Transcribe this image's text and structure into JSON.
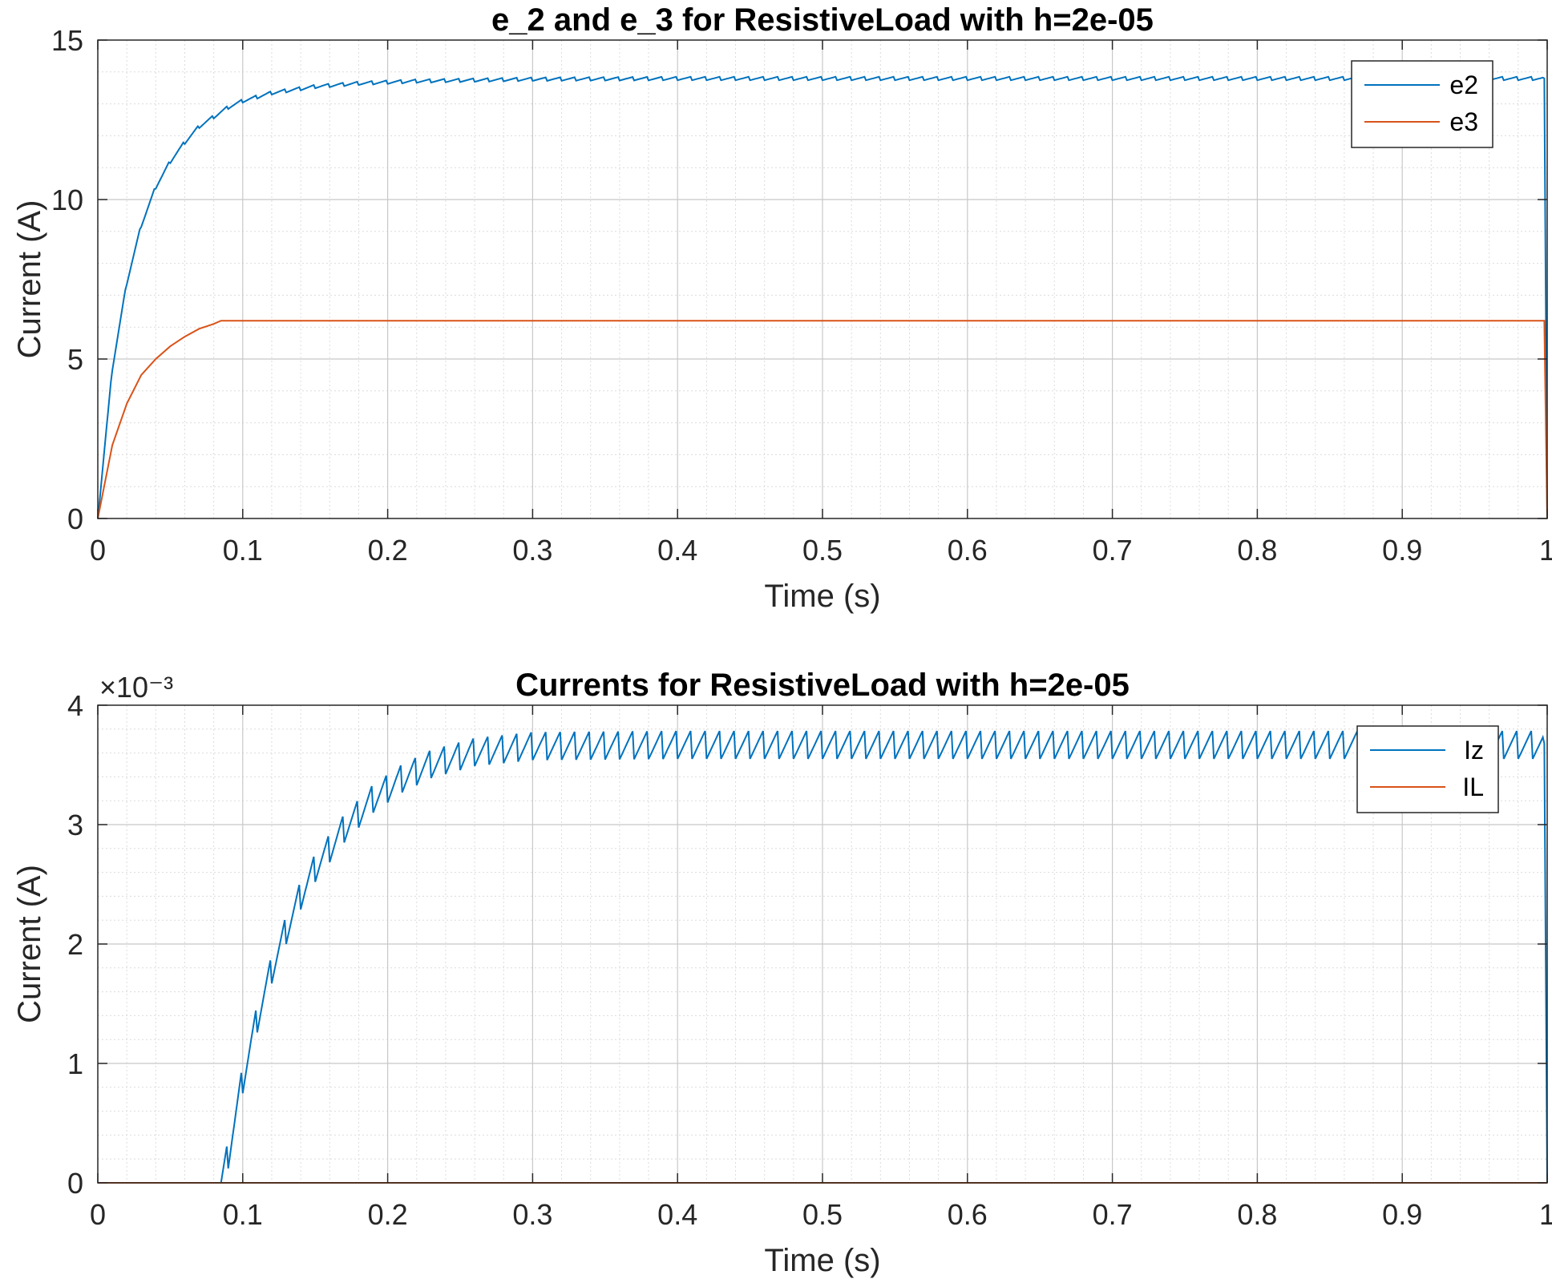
{
  "chart_data": [
    {
      "type": "line",
      "title": "e_2 and e_3 for ResistiveLoad with h=2e-05",
      "xlabel": "Time (s)",
      "ylabel": "Current (A)",
      "xlim": [
        0,
        1
      ],
      "ylim": [
        0,
        15
      ],
      "xticks": [
        "0",
        "0.1",
        "0.2",
        "0.3",
        "0.4",
        "0.5",
        "0.6",
        "0.7",
        "0.8",
        "0.9",
        "1"
      ],
      "yticks": [
        "0",
        "5",
        "10",
        "15"
      ],
      "exponent_label": "",
      "grid": true,
      "minor_grid": true,
      "legend_position": "top-right",
      "series": [
        {
          "name": "e2",
          "color": "#0072BD",
          "points": [
            [
              0,
              0
            ],
            [
              0.01,
              4.7
            ],
            [
              0.02,
              7.4
            ],
            [
              0.03,
              9.2
            ],
            [
              0.04,
              10.4
            ],
            [
              0.05,
              11.2
            ],
            [
              0.06,
              11.8
            ],
            [
              0.07,
              12.3
            ],
            [
              0.08,
              12.6
            ],
            [
              0.09,
              12.9
            ],
            [
              0.1,
              13.1
            ],
            [
              0.12,
              13.35
            ],
            [
              0.15,
              13.55
            ],
            [
              0.18,
              13.65
            ],
            [
              0.22,
              13.72
            ],
            [
              0.26,
              13.75
            ],
            [
              0.3,
              13.78
            ],
            [
              0.4,
              13.8
            ],
            [
              0.5,
              13.8
            ],
            [
              0.6,
              13.8
            ],
            [
              0.7,
              13.8
            ],
            [
              0.8,
              13.8
            ],
            [
              0.9,
              13.8
            ],
            [
              0.998,
              13.8
            ],
            [
              1.0,
              0
            ]
          ],
          "ripple": 0.12
        },
        {
          "name": "e3",
          "color": "#D95319",
          "points": [
            [
              0,
              0
            ],
            [
              0.01,
              2.3
            ],
            [
              0.02,
              3.6
            ],
            [
              0.03,
              4.5
            ],
            [
              0.04,
              5.0
            ],
            [
              0.05,
              5.4
            ],
            [
              0.06,
              5.7
            ],
            [
              0.07,
              5.95
            ],
            [
              0.08,
              6.1
            ],
            [
              0.085,
              6.2
            ],
            [
              0.1,
              6.2
            ],
            [
              0.3,
              6.2
            ],
            [
              0.5,
              6.2
            ],
            [
              0.7,
              6.2
            ],
            [
              0.9,
              6.2
            ],
            [
              0.998,
              6.2
            ],
            [
              1.0,
              0
            ]
          ],
          "ripple": 0
        }
      ]
    },
    {
      "type": "line",
      "title": "Currents for ResistiveLoad with h=2e-05",
      "xlabel": "Time (s)",
      "ylabel": "Current (A)",
      "xlim": [
        0,
        1
      ],
      "ylim": [
        0,
        0.004
      ],
      "xticks": [
        "0",
        "0.1",
        "0.2",
        "0.3",
        "0.4",
        "0.5",
        "0.6",
        "0.7",
        "0.8",
        "0.9",
        "1"
      ],
      "yticks": [
        "0",
        "1",
        "2",
        "3",
        "4"
      ],
      "exponent_label": "×10⁻³",
      "grid": true,
      "minor_grid": true,
      "legend_position": "top-right",
      "series": [
        {
          "name": "Iz",
          "color": "#0072BD",
          "points": [
            [
              0,
              0
            ],
            [
              0.085,
              0
            ],
            [
              0.09,
              0.00025
            ],
            [
              0.1,
              0.00088
            ],
            [
              0.11,
              0.00139
            ],
            [
              0.12,
              0.0018
            ],
            [
              0.13,
              0.00213
            ],
            [
              0.14,
              0.00242
            ],
            [
              0.15,
              0.00265
            ],
            [
              0.17,
              0.00298
            ],
            [
              0.19,
              0.00323
            ],
            [
              0.21,
              0.0034
            ],
            [
              0.23,
              0.00352
            ],
            [
              0.26,
              0.00362
            ],
            [
              0.3,
              0.00367
            ],
            [
              0.4,
              0.00368
            ],
            [
              0.5,
              0.00368
            ],
            [
              0.6,
              0.00368
            ],
            [
              0.7,
              0.00368
            ],
            [
              0.8,
              0.00368
            ],
            [
              0.9,
              0.00368
            ],
            [
              0.998,
              0.00368
            ],
            [
              1.0,
              0
            ]
          ],
          "ripple": 0.00026
        },
        {
          "name": "IL",
          "color": "#D95319",
          "points": [
            [
              0,
              0
            ],
            [
              1.0,
              0
            ]
          ],
          "ripple": 0
        }
      ]
    }
  ]
}
